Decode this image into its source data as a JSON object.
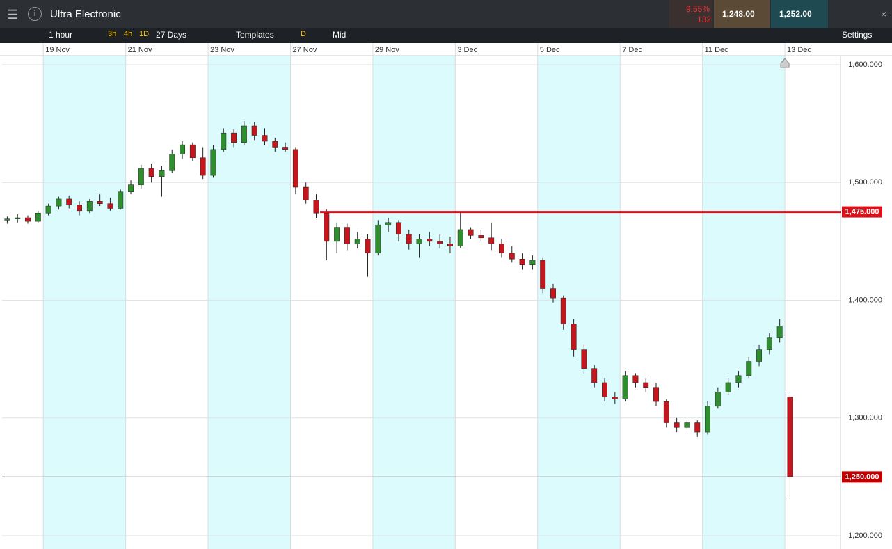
{
  "toolbar": {
    "title": "Ultra Electronic",
    "change": "9.55%",
    "change_points": "132",
    "sell": "1,248.00",
    "buy": "1,252.00",
    "interval": "1 hour",
    "quick": [
      "3h",
      "4h",
      "1D"
    ],
    "range": "27 Days",
    "templates": "Templates",
    "d": "D",
    "price_type": "Mid",
    "settings": "Settings"
  },
  "chart_data": {
    "type": "candlestick",
    "up_color": "#2f8f2f",
    "down_color": "#c4161c",
    "shade_color": "#dcfbfd",
    "grid": true,
    "ylim": [
      1200,
      1600
    ],
    "yticks": [
      {
        "value": 1200,
        "label": "1,200.000"
      },
      {
        "value": 1300,
        "label": "1,300.000"
      },
      {
        "value": 1400,
        "label": "1,400.000"
      },
      {
        "value": 1500,
        "label": "1,500.000"
      },
      {
        "value": 1600,
        "label": "1,600.000"
      }
    ],
    "xlim": [
      0,
      81.4
    ],
    "xticks": [
      {
        "value": 4,
        "label": "19 Nov"
      },
      {
        "value": 12,
        "label": "21 Nov"
      },
      {
        "value": 20,
        "label": "23 Nov"
      },
      {
        "value": 28,
        "label": "27 Nov"
      },
      {
        "value": 36,
        "label": "29 Nov"
      },
      {
        "value": 44,
        "label": "3 Dec"
      },
      {
        "value": 52,
        "label": "5 Dec"
      },
      {
        "value": 60,
        "label": "7 Dec"
      },
      {
        "value": 68,
        "label": "11 Dec"
      },
      {
        "value": 76,
        "label": "13 Dec"
      }
    ],
    "hlines": [
      {
        "value": 1475,
        "label": "1,475.000",
        "color": "#d9111b"
      },
      {
        "value": 1250,
        "label": "1,250.000",
        "color": "#000000"
      }
    ],
    "ohlc": [
      [
        1468,
        1471,
        1465,
        1469
      ],
      [
        1469,
        1473,
        1466,
        1470
      ],
      [
        1470,
        1472,
        1465,
        1467
      ],
      [
        1467,
        1476,
        1466,
        1474
      ],
      [
        1474,
        1482,
        1472,
        1480
      ],
      [
        1480,
        1488,
        1477,
        1486
      ],
      [
        1486,
        1489,
        1478,
        1481
      ],
      [
        1481,
        1484,
        1472,
        1476
      ],
      [
        1476,
        1486,
        1474,
        1484
      ],
      [
        1484,
        1490,
        1480,
        1482
      ],
      [
        1482,
        1487,
        1476,
        1478
      ],
      [
        1478,
        1494,
        1477,
        1492
      ],
      [
        1492,
        1502,
        1490,
        1498
      ],
      [
        1498,
        1515,
        1495,
        1512
      ],
      [
        1512,
        1516,
        1500,
        1505
      ],
      [
        1505,
        1514,
        1488,
        1510
      ],
      [
        1510,
        1528,
        1508,
        1524
      ],
      [
        1524,
        1535,
        1520,
        1532
      ],
      [
        1532,
        1534,
        1518,
        1521
      ],
      [
        1521,
        1530,
        1503,
        1506
      ],
      [
        1506,
        1532,
        1504,
        1528
      ],
      [
        1528,
        1546,
        1526,
        1542
      ],
      [
        1542,
        1545,
        1530,
        1534
      ],
      [
        1534,
        1552,
        1532,
        1548
      ],
      [
        1548,
        1551,
        1536,
        1540
      ],
      [
        1540,
        1546,
        1532,
        1535
      ],
      [
        1535,
        1538,
        1526,
        1530
      ],
      [
        1530,
        1534,
        1526,
        1528
      ],
      [
        1528,
        1530,
        1490,
        1496
      ],
      [
        1496,
        1500,
        1482,
        1485
      ],
      [
        1485,
        1490,
        1470,
        1474
      ],
      [
        1474,
        1477,
        1434,
        1450
      ],
      [
        1450,
        1466,
        1440,
        1462
      ],
      [
        1462,
        1465,
        1442,
        1448
      ],
      [
        1448,
        1458,
        1444,
        1452
      ],
      [
        1452,
        1456,
        1420,
        1440
      ],
      [
        1440,
        1468,
        1438,
        1464
      ],
      [
        1464,
        1470,
        1458,
        1466
      ],
      [
        1466,
        1468,
        1450,
        1456
      ],
      [
        1456,
        1460,
        1443,
        1448
      ],
      [
        1448,
        1456,
        1436,
        1452
      ],
      [
        1452,
        1458,
        1446,
        1450
      ],
      [
        1450,
        1456,
        1444,
        1448
      ],
      [
        1448,
        1454,
        1440,
        1446
      ],
      [
        1446,
        1475,
        1444,
        1460
      ],
      [
        1460,
        1462,
        1452,
        1455
      ],
      [
        1455,
        1460,
        1450,
        1453
      ],
      [
        1453,
        1466,
        1442,
        1448
      ],
      [
        1448,
        1452,
        1436,
        1440
      ],
      [
        1440,
        1446,
        1432,
        1435
      ],
      [
        1435,
        1440,
        1426,
        1430
      ],
      [
        1430,
        1438,
        1426,
        1434
      ],
      [
        1434,
        1436,
        1406,
        1410
      ],
      [
        1410,
        1414,
        1398,
        1402
      ],
      [
        1402,
        1404,
        1375,
        1380
      ],
      [
        1380,
        1384,
        1352,
        1358
      ],
      [
        1358,
        1362,
        1338,
        1342
      ],
      [
        1342,
        1345,
        1326,
        1330
      ],
      [
        1330,
        1334,
        1314,
        1318
      ],
      [
        1318,
        1322,
        1312,
        1316
      ],
      [
        1316,
        1340,
        1314,
        1336
      ],
      [
        1336,
        1338,
        1326,
        1330
      ],
      [
        1330,
        1334,
        1322,
        1326
      ],
      [
        1326,
        1330,
        1310,
        1314
      ],
      [
        1314,
        1316,
        1292,
        1296
      ],
      [
        1296,
        1300,
        1288,
        1292
      ],
      [
        1292,
        1298,
        1290,
        1296
      ],
      [
        1296,
        1298,
        1284,
        1288
      ],
      [
        1288,
        1314,
        1286,
        1310
      ],
      [
        1310,
        1326,
        1308,
        1322
      ],
      [
        1322,
        1334,
        1320,
        1330
      ],
      [
        1330,
        1340,
        1326,
        1336
      ],
      [
        1336,
        1352,
        1334,
        1348
      ],
      [
        1348,
        1362,
        1344,
        1358
      ],
      [
        1358,
        1372,
        1354,
        1368
      ],
      [
        1368,
        1384,
        1364,
        1378
      ],
      [
        1318,
        1320,
        1231,
        1250
      ]
    ]
  }
}
